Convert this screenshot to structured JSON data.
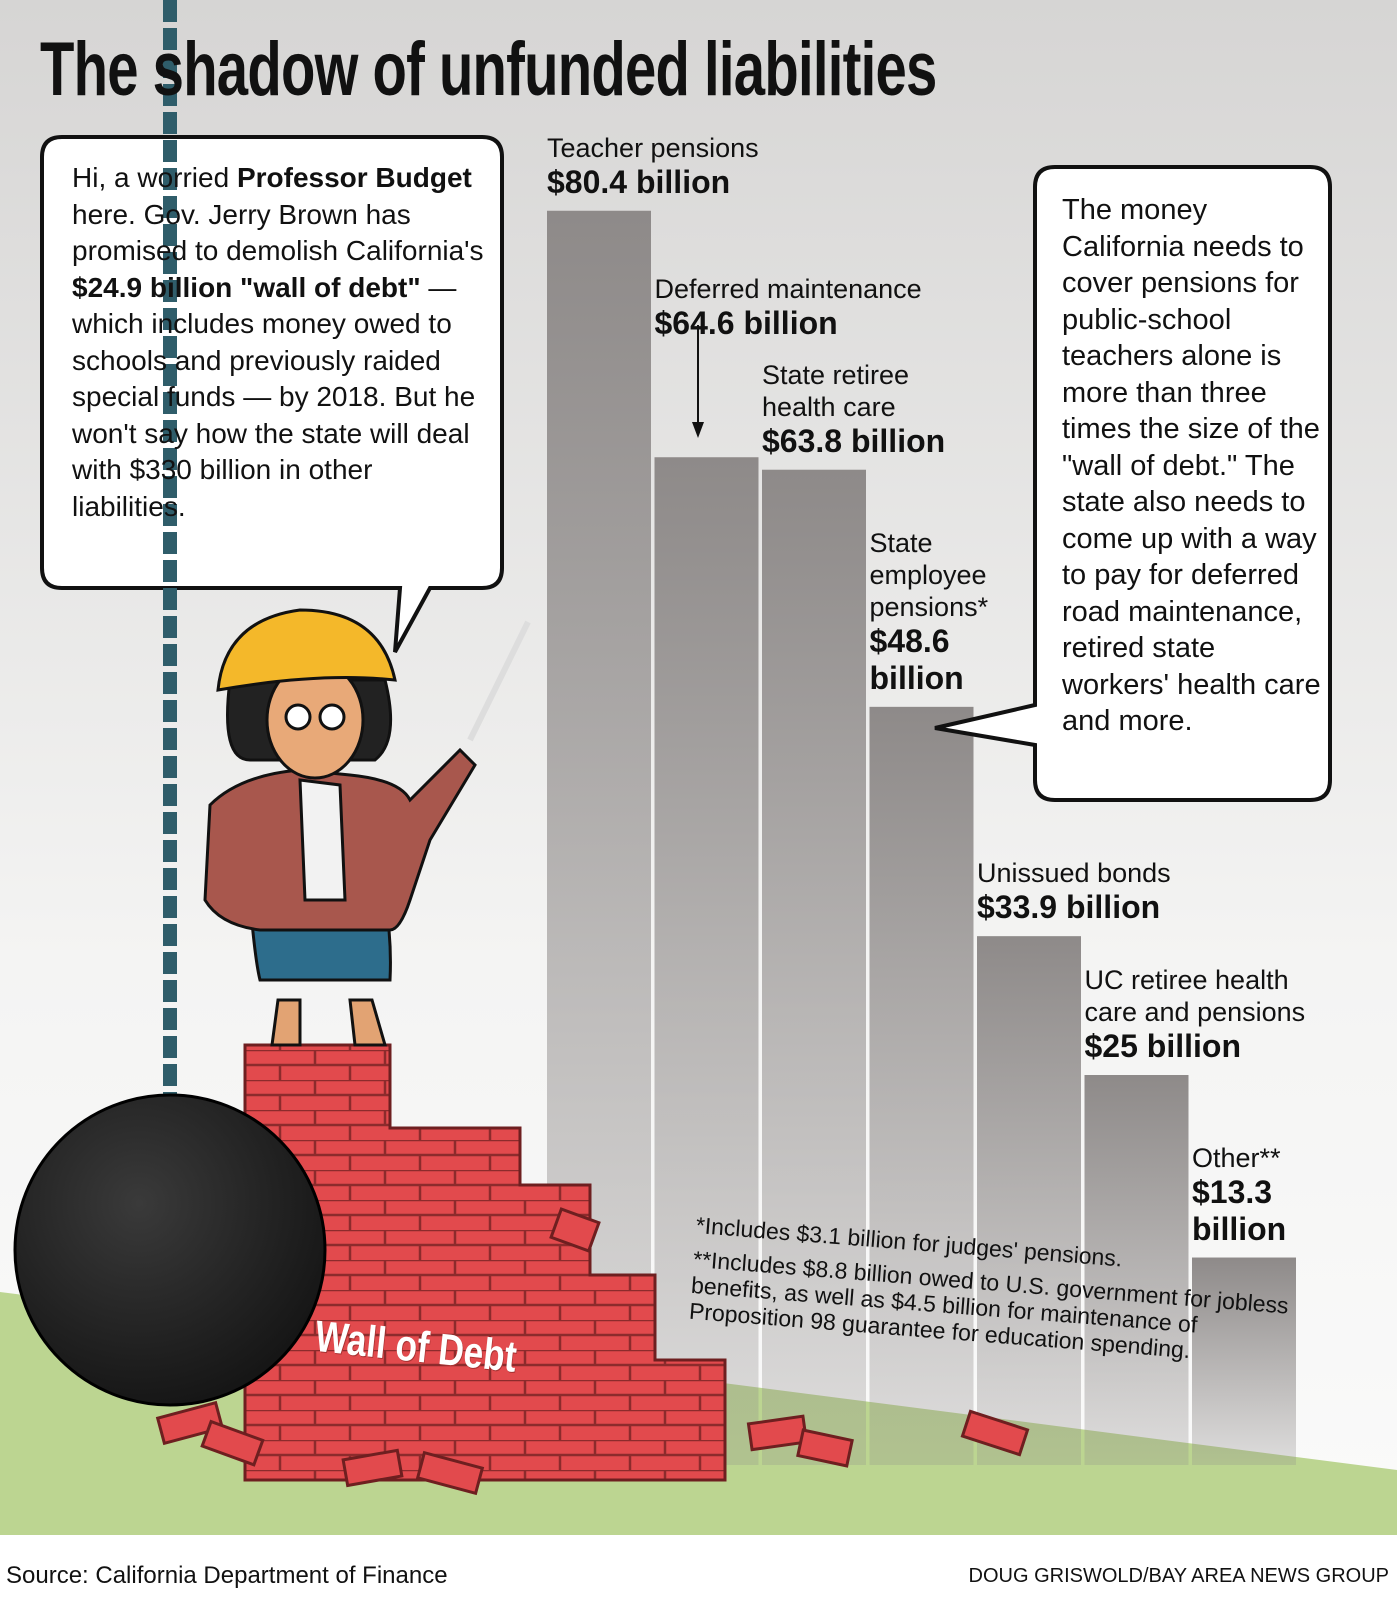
{
  "chart_data": {
    "type": "bar",
    "title": "The shadow of unfunded liabilities",
    "categories": [
      "Teacher pensions",
      "Deferred maintenance",
      "State retiree health care",
      "State employee pensions*",
      "Unissued bonds",
      "UC retiree health care and pensions",
      "Other**"
    ],
    "values": [
      80.4,
      64.6,
      63.8,
      48.6,
      33.9,
      25,
      13.3
    ],
    "value_labels": [
      "$80.4 billion",
      "$64.6 billion",
      "$63.8 billion",
      "$48.6 billion",
      "$33.9 billion",
      "$25 billion",
      "$13.3 billion"
    ],
    "color": "#8e8a89"
  },
  "speech_bubble": [
    "Hi, a worried ",
    "Professor Budget",
    " here. Gov. Jerry Brown has promised to demolish California's ",
    "$24.9 billion \"wall of debt\"",
    " — which includes money owed to schools and previously raided special funds — by 2018. But he won't say how the state will deal with $330 billion in other liabilities."
  ],
  "callout": "The money California needs to cover pensions for public-school teachers alone is more than three times the size of the \"wall of debt.\" The state also needs to come up with a way to pay for deferred road maintenance, retired state workers' health care and more.",
  "illustration_label": "Wall of Debt",
  "footnotes": [
    "*Includes $3.1 billion for judges' pensions.",
    "**Includes $8.8 billion owed to U.S. government for jobless benefits, as well as $4.5 billion for maintenance of Proposition 98 guarantee for education spending."
  ],
  "source": "Source: California Department of Finance",
  "credit": "DOUG GRISWOLD/BAY AREA NEWS GROUP"
}
